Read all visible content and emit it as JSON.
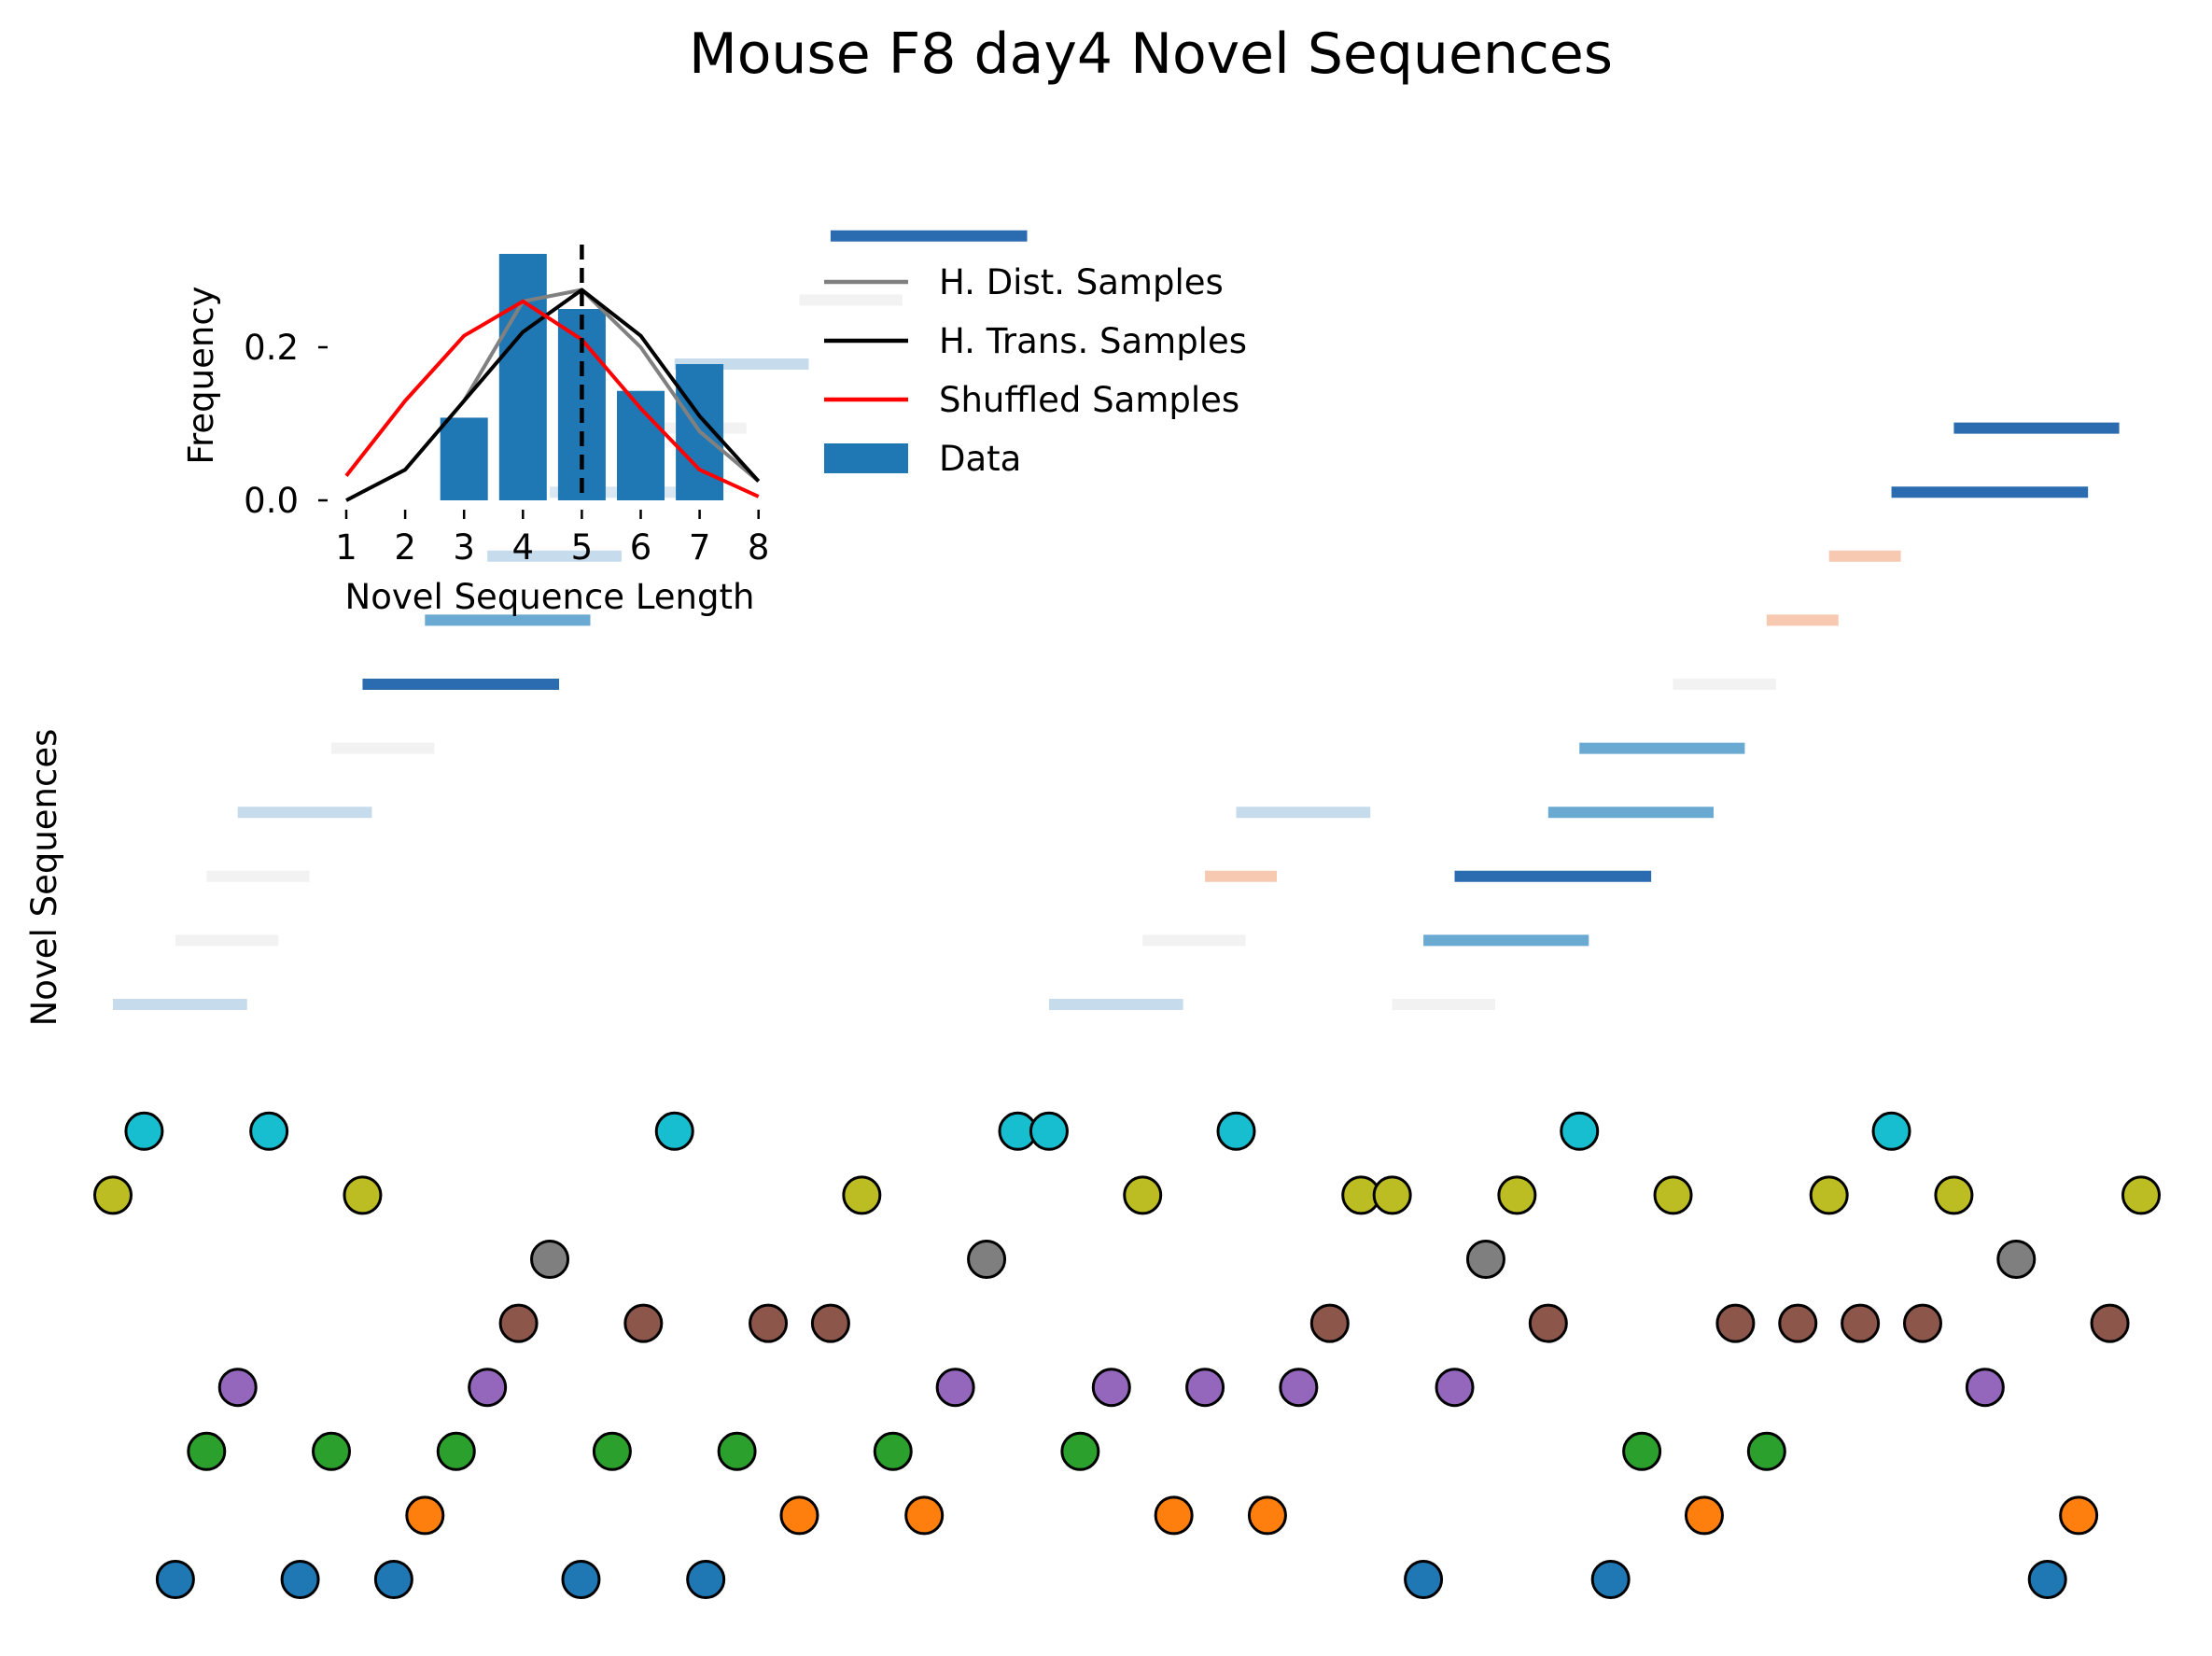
{
  "chart_data": {
    "type": "scatter",
    "title": "Mouse F8 day4 Novel Sequences",
    "ylabel": "Novel Sequences",
    "grid": false,
    "xlim": [
      0,
      65
    ],
    "dot_colors": [
      "#1f77b4",
      "#ff7f0e",
      "#2ca02c",
      "#9467bd",
      "#8c564b",
      "#7f7f7f",
      "#bcbd22",
      "#17becf"
    ],
    "dots": [
      {
        "row": 0,
        "x": [
          2,
          6,
          9,
          15,
          19,
          42,
          48,
          62
        ]
      },
      {
        "row": 1,
        "x": [
          10,
          22,
          26,
          34,
          37,
          51,
          63
        ]
      },
      {
        "row": 2,
        "x": [
          3,
          7,
          11,
          16,
          20,
          25,
          31,
          49,
          53
        ]
      },
      {
        "row": 3,
        "x": [
          4,
          12,
          27,
          32,
          35,
          38,
          43,
          60
        ]
      },
      {
        "row": 4,
        "x": [
          13,
          17,
          21,
          23,
          39,
          46,
          52,
          54,
          56,
          58,
          64
        ]
      },
      {
        "row": 5,
        "x": [
          14,
          28,
          44,
          61
        ]
      },
      {
        "row": 6,
        "x": [
          0,
          8,
          24,
          33,
          40,
          41,
          45,
          50,
          55,
          59,
          65
        ]
      },
      {
        "row": 7,
        "x": [
          1,
          5,
          18,
          29,
          30,
          36,
          47,
          57
        ]
      }
    ],
    "segments": [
      {
        "row": 0,
        "start": 0,
        "end": 4.3,
        "color": "#c6dcec"
      },
      {
        "row": 1,
        "start": 2,
        "end": 5.3,
        "color": "#f2f2f2"
      },
      {
        "row": 2,
        "start": 3,
        "end": 6.3,
        "color": "#f2f2f2"
      },
      {
        "row": 3,
        "start": 4,
        "end": 8.3,
        "color": "#c6dcec"
      },
      {
        "row": 4,
        "start": 7,
        "end": 10.3,
        "color": "#f2f2f2"
      },
      {
        "row": 5,
        "start": 8,
        "end": 14.3,
        "color": "#2b6cb0"
      },
      {
        "row": 6,
        "start": 10,
        "end": 15.3,
        "color": "#6aa9d2"
      },
      {
        "row": 7,
        "start": 12,
        "end": 16.3,
        "color": "#c6dcec"
      },
      {
        "row": 8,
        "start": 14,
        "end": 18.3,
        "color": "#d9e7f2"
      },
      {
        "row": 9,
        "start": 17,
        "end": 20.3,
        "color": "#f2f2f2"
      },
      {
        "row": 10,
        "start": 18,
        "end": 22.3,
        "color": "#c6dcec"
      },
      {
        "row": 11,
        "start": 22,
        "end": 25.3,
        "color": "#f2f2f2"
      },
      {
        "row": 12,
        "start": 23,
        "end": 29.3,
        "color": "#2b6cb0"
      },
      {
        "row": 0,
        "start": 30,
        "end": 34.3,
        "color": "#c6dcec"
      },
      {
        "row": 1,
        "start": 33,
        "end": 36.3,
        "color": "#f2f2f2"
      },
      {
        "row": 2,
        "start": 35,
        "end": 37.3,
        "color": "#f6c9b0"
      },
      {
        "row": 3,
        "start": 36,
        "end": 40.3,
        "color": "#c6dcec"
      },
      {
        "row": 0,
        "start": 41,
        "end": 44.3,
        "color": "#f2f2f2"
      },
      {
        "row": 1,
        "start": 42,
        "end": 47.3,
        "color": "#6aa9d2"
      },
      {
        "row": 2,
        "start": 43,
        "end": 49.3,
        "color": "#2b6cb0"
      },
      {
        "row": 3,
        "start": 46,
        "end": 51.3,
        "color": "#6aa9d2"
      },
      {
        "row": 4,
        "start": 47,
        "end": 52.3,
        "color": "#6aa9d2"
      },
      {
        "row": 5,
        "start": 50,
        "end": 53.3,
        "color": "#f2f2f2"
      },
      {
        "row": 6,
        "start": 53,
        "end": 55.3,
        "color": "#f6c9b0"
      },
      {
        "row": 7,
        "start": 55,
        "end": 57.3,
        "color": "#f6c9b0"
      },
      {
        "row": 8,
        "start": 57,
        "end": 63.3,
        "color": "#2b6cb0"
      },
      {
        "row": 9,
        "start": 59,
        "end": 64.3,
        "color": "#2b6cb0"
      }
    ],
    "inset": {
      "type": "bar",
      "xlabel": "Novel Sequence Length",
      "ylabel": "Frequency",
      "xticks": [
        "1",
        "2",
        "3",
        "4",
        "5",
        "6",
        "7",
        "8"
      ],
      "yticks": [
        "0.0",
        "0.2"
      ],
      "ylim": [
        0,
        0.32
      ],
      "vline_x": 5,
      "bar_color": "#1f77b4",
      "bars": {
        "x": [
          3,
          4,
          5,
          6,
          7
        ],
        "values": [
          0.108,
          0.322,
          0.25,
          0.143,
          0.178
        ]
      },
      "series": [
        {
          "name": "H. Dist. Samples",
          "color": "#808080",
          "x": [
            3,
            4,
            5,
            6,
            7,
            8
          ],
          "values": [
            0.13,
            0.26,
            0.275,
            0.2,
            0.09,
            0.025
          ]
        },
        {
          "name": "H. Trans. Samples",
          "color": "#000000",
          "x": [
            1,
            2,
            3,
            4,
            5,
            6,
            7,
            8
          ],
          "values": [
            0.0,
            0.04,
            0.13,
            0.22,
            0.275,
            0.215,
            0.11,
            0.025
          ]
        },
        {
          "name": "Shuffled Samples",
          "color": "#ff0000",
          "x": [
            1,
            2,
            3,
            4,
            5,
            6,
            7,
            8
          ],
          "values": [
            0.032,
            0.13,
            0.215,
            0.26,
            0.21,
            0.12,
            0.04,
            0.005
          ]
        }
      ]
    },
    "legend": {
      "placement": "upper right of inset",
      "entries": [
        {
          "label": "H. Dist. Samples",
          "kind": "line",
          "color": "#808080"
        },
        {
          "label": "H. Trans. Samples",
          "kind": "line",
          "color": "#000000"
        },
        {
          "label": "Shuffled Samples",
          "kind": "line",
          "color": "#ff0000"
        },
        {
          "label": "Data",
          "kind": "patch",
          "color": "#1f77b4"
        }
      ]
    }
  }
}
